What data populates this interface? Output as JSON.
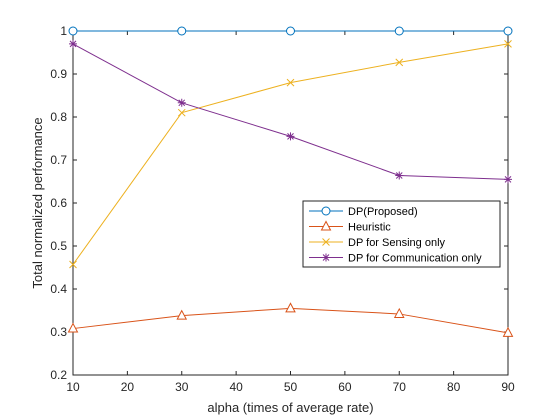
{
  "chart_data": {
    "type": "line",
    "title": "",
    "xlabel": "alpha (times of average rate)",
    "ylabel": "Total normalized performance",
    "xlim": [
      10,
      90
    ],
    "ylim": [
      0.2,
      1.0
    ],
    "xticks": [
      10,
      20,
      30,
      40,
      50,
      60,
      70,
      80,
      90
    ],
    "yticks": [
      0.2,
      0.3,
      0.4,
      0.5,
      0.6,
      0.7,
      0.8,
      0.9,
      1.0
    ],
    "xtick_labels": [
      "10",
      "20",
      "30",
      "40",
      "50",
      "60",
      "70",
      "80",
      "90"
    ],
    "ytick_labels": [
      "0.2",
      "0.3",
      "0.4",
      "0.5",
      "0.6",
      "0.7",
      "0.8",
      "0.9",
      "1"
    ],
    "grid": false,
    "legend_placement": "center-right",
    "x": [
      10,
      30,
      50,
      70,
      90
    ],
    "series": [
      {
        "name": "DP(Proposed)",
        "values": [
          1.0,
          1.0,
          1.0,
          1.0,
          1.0
        ],
        "color": "#0072BD",
        "marker": "circle"
      },
      {
        "name": "Heuristic",
        "values": [
          0.308,
          0.338,
          0.355,
          0.342,
          0.298
        ],
        "color": "#D95319",
        "marker": "triangle"
      },
      {
        "name": "DP for Sensing only",
        "values": [
          0.457,
          0.81,
          0.88,
          0.927,
          0.97
        ],
        "color": "#EDB120",
        "marker": "x"
      },
      {
        "name": "DP for Communication only",
        "values": [
          0.97,
          0.833,
          0.755,
          0.664,
          0.655
        ],
        "color": "#7E2F8E",
        "marker": "star"
      }
    ]
  }
}
